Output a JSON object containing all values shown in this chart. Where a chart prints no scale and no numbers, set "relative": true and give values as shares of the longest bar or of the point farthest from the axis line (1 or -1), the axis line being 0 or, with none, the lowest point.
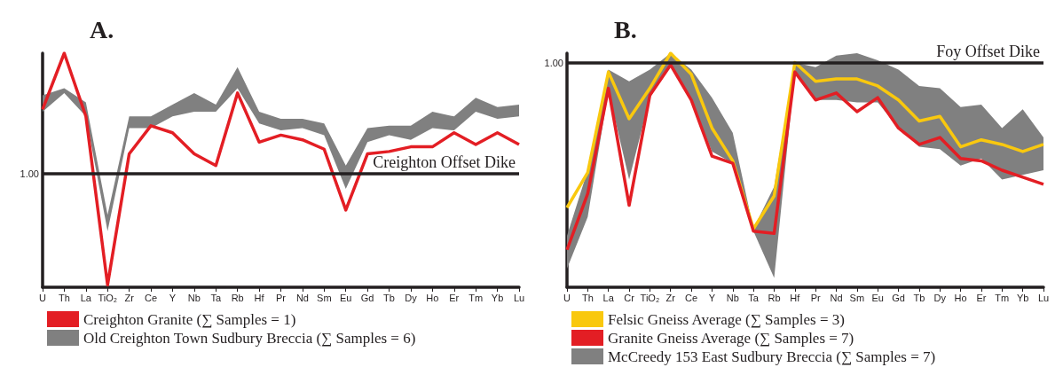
{
  "chart_data": [
    {
      "type": "line",
      "title": "A.",
      "relative": true,
      "legend": "bottom",
      "grid": false,
      "categories": [
        "U",
        "Th",
        "La",
        "TiO₂",
        "Zr",
        "Ce",
        "Y",
        "Nb",
        "Ta",
        "Rb",
        "Hf",
        "Pr",
        "Nd",
        "Sm",
        "Eu",
        "Gd",
        "Tb",
        "Dy",
        "Ho",
        "Er",
        "Tm",
        "Yb",
        "Lu"
      ],
      "series": [
        {
          "name": "Creighton Granite (∑ Samples = 1)",
          "color": "#e31e24",
          "values": [
            0.76,
            1.0,
            0.73,
            0.01,
            0.57,
            0.69,
            0.66,
            0.57,
            0.52,
            0.83,
            0.62,
            0.65,
            0.63,
            0.59,
            0.33,
            0.57,
            0.58,
            0.6,
            0.6,
            0.66,
            0.61,
            0.66,
            0.61
          ]
        },
        {
          "name": "Old Creighton Town Sudbury Breccia (∑ Samples = 6)",
          "color": "#808080",
          "values": [
            null,
            null,
            null,
            null,
            null,
            null,
            null,
            null,
            null,
            null,
            null,
            null,
            null,
            null,
            null,
            null,
            null,
            null,
            null,
            null,
            null,
            null,
            null
          ],
          "lower": [
            0.75,
            0.83,
            0.73,
            0.24,
            0.68,
            0.68,
            0.73,
            0.75,
            0.75,
            0.85,
            0.7,
            0.67,
            0.68,
            0.65,
            0.42,
            0.62,
            0.65,
            0.63,
            0.68,
            0.67,
            0.75,
            0.72,
            0.73
          ],
          "upper": [
            0.82,
            0.85,
            0.79,
            0.31,
            0.73,
            0.73,
            0.78,
            0.83,
            0.78,
            0.94,
            0.75,
            0.72,
            0.72,
            0.7,
            0.52,
            0.68,
            0.69,
            0.69,
            0.75,
            0.73,
            0.81,
            0.77,
            0.78
          ]
        }
      ],
      "ref_lines": [
        {
          "axis": "y",
          "value": 0.485,
          "label": "Creighton Offset Dike",
          "color": "#231f20"
        }
      ],
      "annotations": [
        "1.00"
      ]
    },
    {
      "type": "line",
      "title": "B.",
      "relative": true,
      "legend": "bottom",
      "grid": false,
      "categories": [
        "U",
        "Th",
        "La",
        "Cr",
        "TiO₂",
        "Zr",
        "Ce",
        "Y",
        "Nb",
        "Ta",
        "Rb",
        "Hf",
        "Pr",
        "Nd",
        "Sm",
        "Eu",
        "Gd",
        "Tb",
        "Dy",
        "Ho",
        "Er",
        "Tm",
        "Yb",
        "Lu"
      ],
      "series": [
        {
          "name": "Felsic Gneiss Average (∑ Samples = 3)",
          "color": "#f9c80e",
          "values": [
            0.34,
            0.49,
            0.92,
            0.72,
            0.85,
            1.0,
            0.91,
            0.68,
            0.54,
            0.25,
            0.39,
            0.96,
            0.88,
            0.89,
            0.89,
            0.86,
            0.8,
            0.71,
            0.73,
            0.6,
            0.63,
            0.61,
            0.58,
            0.61
          ]
        },
        {
          "name": "Granite Gneiss Average (∑ Samples = 7)",
          "color": "#e31e24",
          "values": [
            0.16,
            0.4,
            0.85,
            0.35,
            0.82,
            0.95,
            0.8,
            0.56,
            0.53,
            0.24,
            0.23,
            0.92,
            0.8,
            0.83,
            0.75,
            0.81,
            0.68,
            0.61,
            0.64,
            0.55,
            0.54,
            0.5,
            0.47,
            0.44
          ]
        },
        {
          "name": "McCreedy 153 East Sudbury Breccia (∑ Samples = 7)",
          "color": "#808080",
          "values": [
            null,
            null,
            null,
            null,
            null,
            null,
            null,
            null,
            null,
            null,
            null,
            null,
            null,
            null,
            null,
            null,
            null,
            null,
            null,
            null,
            null,
            null,
            null,
            null
          ],
          "lower": [
            0.08,
            0.3,
            0.84,
            0.46,
            0.81,
            0.95,
            0.8,
            0.58,
            0.53,
            0.24,
            0.04,
            0.92,
            0.8,
            0.8,
            0.79,
            0.79,
            0.68,
            0.6,
            0.59,
            0.52,
            0.55,
            0.46,
            0.48,
            0.5
          ],
          "upper": [
            0.22,
            0.5,
            0.93,
            0.88,
            0.93,
            1.0,
            0.93,
            0.81,
            0.66,
            0.25,
            0.43,
            0.96,
            0.94,
            0.99,
            1.0,
            0.97,
            0.93,
            0.86,
            0.85,
            0.77,
            0.78,
            0.68,
            0.76,
            0.64
          ]
        }
      ],
      "ref_lines": [
        {
          "axis": "y",
          "value": 0.959,
          "label": "Foy Offset Dike",
          "color": "#231f20"
        }
      ],
      "annotations": [
        "1.00"
      ]
    }
  ]
}
